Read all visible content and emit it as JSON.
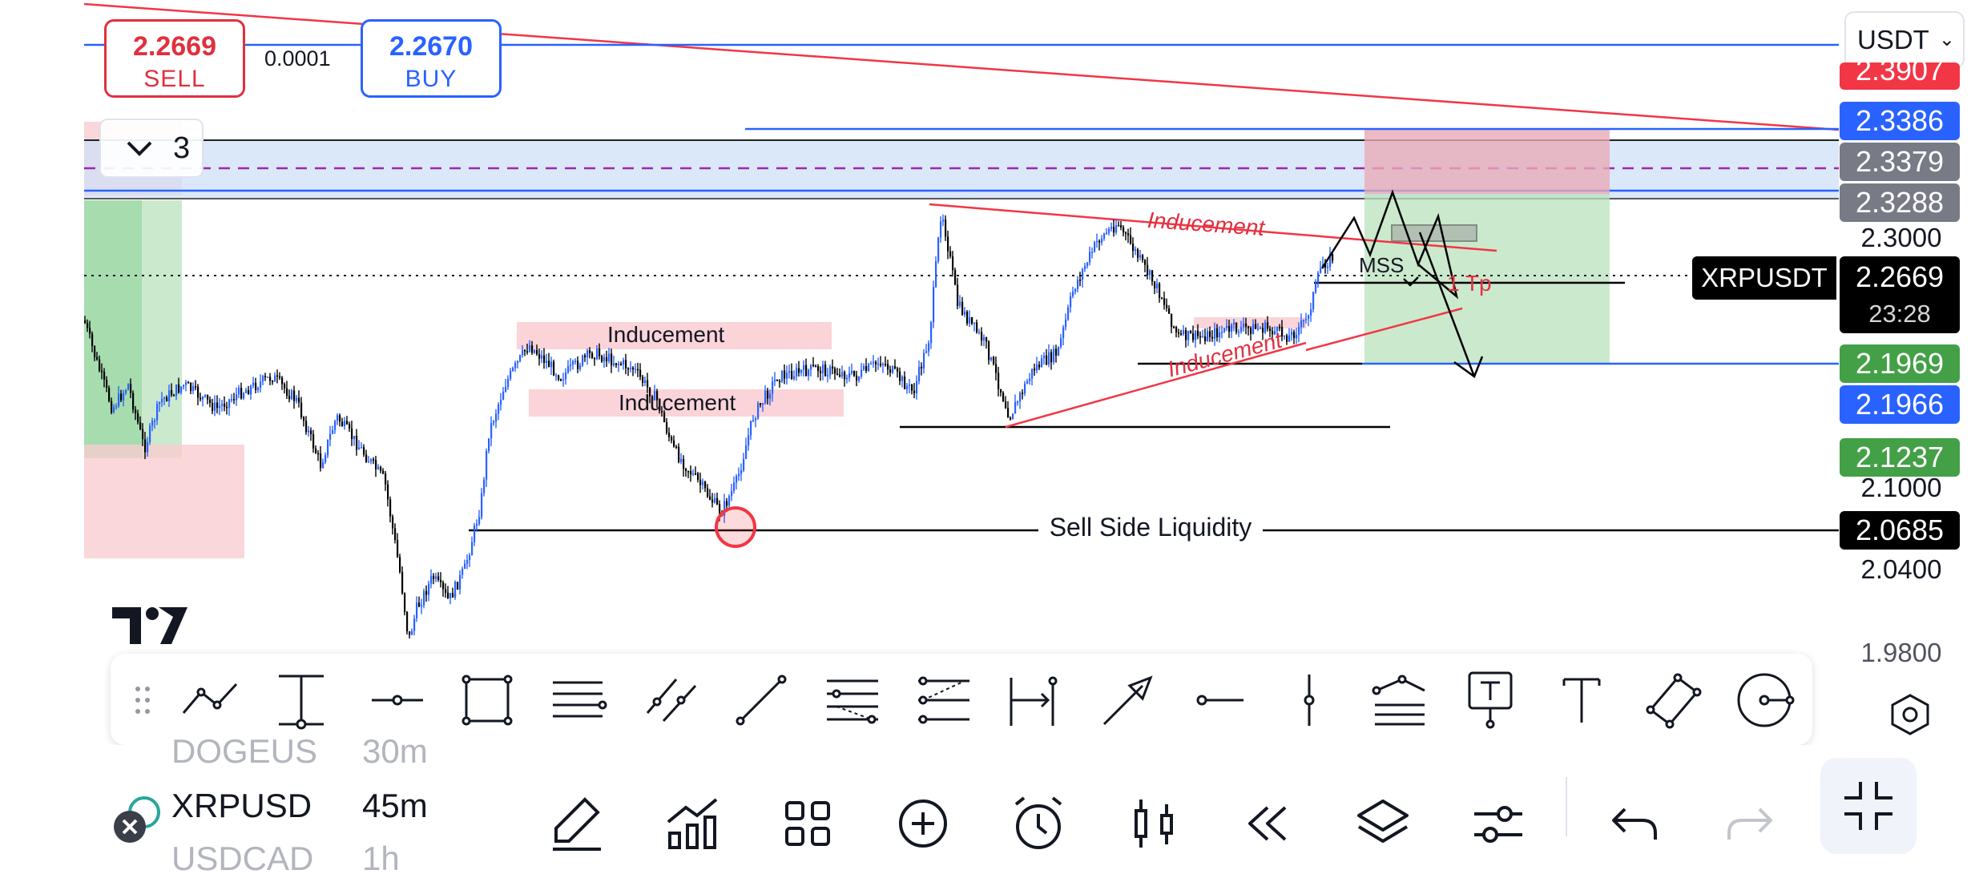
{
  "trade_panel": {
    "sell_price": "2.2669",
    "sell_label": "SELL",
    "spread": "0.0001",
    "buy_price": "2.2670",
    "buy_label": "BUY"
  },
  "currency_selector": {
    "value": "USDT",
    "chevron": "chevron-down-icon"
  },
  "collapse_control": {
    "count": "3",
    "icon": "chevron-down-icon"
  },
  "symbol_tag": "XRPUSDT",
  "price_tag": {
    "price": "2.2669",
    "countdown": "23:28"
  },
  "price_axis": {
    "tags": [
      {
        "value": "2.3907",
        "color": "#f23645"
      },
      {
        "value": "2.3386",
        "color": "#2962ff"
      },
      {
        "value": "2.3379",
        "color": "#787b86"
      },
      {
        "value": "2.3288",
        "color": "#787b86"
      },
      {
        "value": "2.1969",
        "color": "#43a047"
      },
      {
        "value": "2.1966",
        "color": "#2962ff"
      },
      {
        "value": "2.1237",
        "color": "#43a047"
      },
      {
        "value": "2.0685",
        "color": "#000000"
      }
    ],
    "labels": [
      "2.3000",
      "2.1000",
      "2.0400",
      "1.9800"
    ]
  },
  "annotations": {
    "inducement_red_top": "Inducement",
    "inducement_red_bottom": "Inducement",
    "inducement_box_1": "Inducement",
    "inducement_box_2": "Inducement",
    "mss": "MSS",
    "tp": "1 Tp",
    "sell_side_liquidity": "Sell Side Liquidity"
  },
  "drawing_toolbar": {
    "tools": [
      "drag-handle-icon",
      "trend-line-icon",
      "vertical-ray-icon",
      "horizontal-ray-icon",
      "rectangle-icon",
      "pitchfork-icon",
      "parallel-channel-icon",
      "line-icon",
      "fib-retracement-icon",
      "fib-extension-icon",
      "price-range-icon",
      "arrow-icon",
      "horizontal-line-icon",
      "vertical-line-icon",
      "fib-fan-icon",
      "text-note-icon",
      "text-icon",
      "rotated-rectangle-icon",
      "circle-icon"
    ]
  },
  "bottom_bar": {
    "symbols": [
      "DOGEUS",
      "XRPUSD",
      "USDCAD"
    ],
    "intervals": [
      "30m",
      "45m",
      "1h"
    ],
    "icons": [
      "draw-icon",
      "indicators-icon",
      "layout-grid-icon",
      "add-icon",
      "alert-clock-icon",
      "candlestick-icon",
      "replay-icon",
      "layers-icon",
      "settings-sliders-icon",
      "undo-icon",
      "redo-icon",
      "fullscreen-exit-icon"
    ]
  },
  "colors": {
    "buy": "#2962ff",
    "sell": "#e0303f",
    "candle_up": "#2962ff",
    "candle_down": "#000000"
  }
}
